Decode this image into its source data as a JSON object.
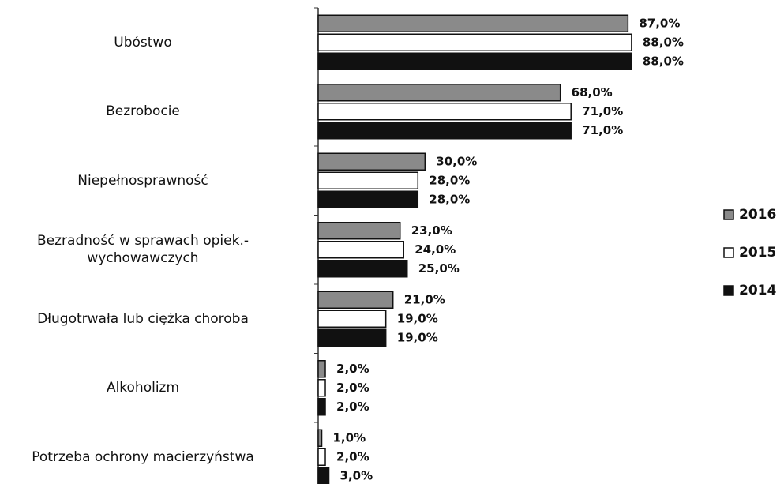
{
  "chart_data": {
    "type": "hbar",
    "categories": [
      "Ubóstwo",
      "Bezrobocie",
      "Niepełnosprawność",
      "Bezradność w sprawach opiek.-\nwychowawczych",
      "Długotrwała lub ciężka choroba",
      "Alkoholizm",
      "Potrzeba ochrony macierzyństwa"
    ],
    "series": [
      {
        "name": "2016",
        "color": "#8a8a8a",
        "values": [
          87,
          68,
          30,
          23,
          21,
          2,
          1
        ],
        "value_labels": [
          "87,0%",
          "68,0%",
          "30,0%",
          "23,0%",
          "21,0%",
          "2,0%",
          "1,0%"
        ]
      },
      {
        "name": "2015",
        "color": "#ffffff",
        "values": [
          88,
          71,
          28,
          24,
          19,
          2,
          2
        ],
        "value_labels": [
          "88,0%",
          "71,0%",
          "28,0%",
          "24,0%",
          "19,0%",
          "2,0%",
          "2,0%"
        ]
      },
      {
        "name": "2014",
        "color": "#111111",
        "values": [
          88,
          71,
          28,
          25,
          19,
          2,
          3
        ],
        "value_labels": [
          "88,0%",
          "71,0%",
          "28,0%",
          "25,0%",
          "19,0%",
          "2,0%",
          "3,0%"
        ]
      }
    ],
    "xlim": [
      0,
      100
    ],
    "legend": "right"
  }
}
